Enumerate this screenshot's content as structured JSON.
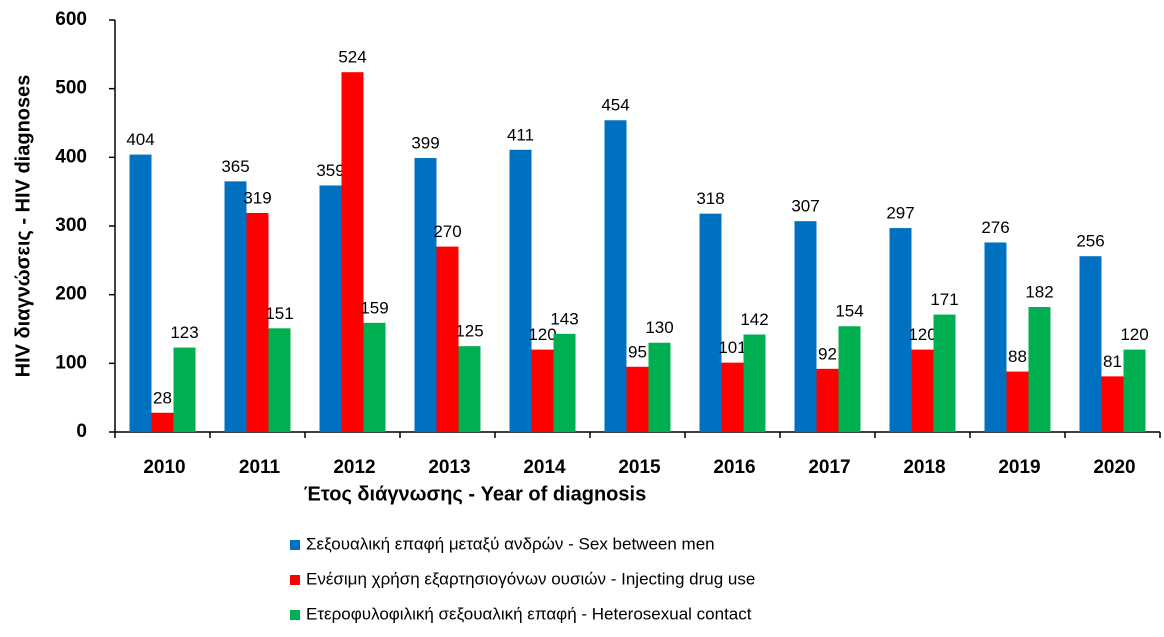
{
  "chart_data": {
    "type": "bar",
    "y_label": "HIV διαγνώσεις - HIV diagnoses",
    "x_label": "Έτος διάγνωσης - Year of diagnosis",
    "categories": [
      "2010",
      "2011",
      "2012",
      "2013",
      "2014",
      "2015",
      "2016",
      "2017",
      "2018",
      "2019",
      "2020"
    ],
    "series": [
      {
        "name": "Σεξουαλική επαφή μεταξύ ανδρών - Sex between men",
        "color": "#0070c0",
        "values": [
          404,
          365,
          359,
          399,
          411,
          454,
          318,
          307,
          297,
          276,
          256
        ]
      },
      {
        "name": "Ενέσιμη χρήση εξαρτησιογόνων ουσιών - Injecting drug use",
        "color": "#ff0000",
        "values": [
          28,
          319,
          524,
          270,
          120,
          95,
          101,
          92,
          120,
          88,
          81
        ]
      },
      {
        "name": "Ετεροφυλοφιλική σεξουαλική επαφή - Heterosexual contact",
        "color": "#00b050",
        "values": [
          123,
          151,
          159,
          125,
          143,
          130,
          142,
          154,
          171,
          182,
          120
        ]
      }
    ],
    "ylim": [
      0,
      600
    ],
    "yticks": [
      0,
      100,
      200,
      300,
      400,
      500,
      600
    ],
    "grid": false,
    "legend": "bottom"
  }
}
